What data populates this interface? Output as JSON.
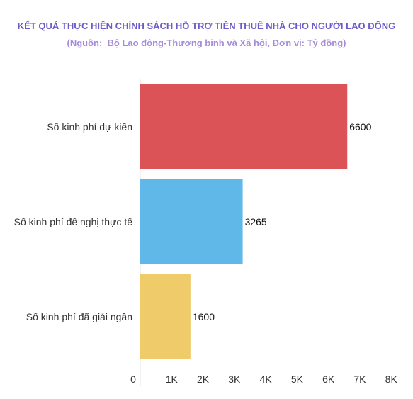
{
  "chart_data": {
    "type": "bar",
    "orientation": "horizontal",
    "title": "KẾT QUẢ THỰC HIỆN CHÍNH SÁCH HỖ TRỢ TIỀN THUÊ NHÀ CHO NGƯỜI LAO ĐỘNG",
    "subtitle": "(Nguồn:  Bộ Lao động-Thương binh và Xã hội, Đơn vị: Tỷ đồng)",
    "categories": [
      "Số kinh phí dự kiến",
      "Số kinh phí đề nghị thực tế",
      "Số kinh phí đã giải ngân"
    ],
    "values": [
      6600,
      3265,
      1600
    ],
    "colors": [
      "#dc5357",
      "#5fb8e7",
      "#f0cb69"
    ],
    "value_labels": [
      "6600",
      "3265",
      "1600"
    ],
    "xlim": [
      0,
      8000
    ],
    "ticks": [
      0,
      1000,
      2000,
      3000,
      4000,
      5000,
      6000,
      7000,
      8000
    ],
    "tick_labels": [
      "0",
      "1K",
      "2K",
      "3K",
      "4K",
      "5K",
      "6K",
      "7K",
      "8K"
    ],
    "xlabel": "",
    "ylabel": "",
    "grid": false,
    "legend": "none"
  }
}
